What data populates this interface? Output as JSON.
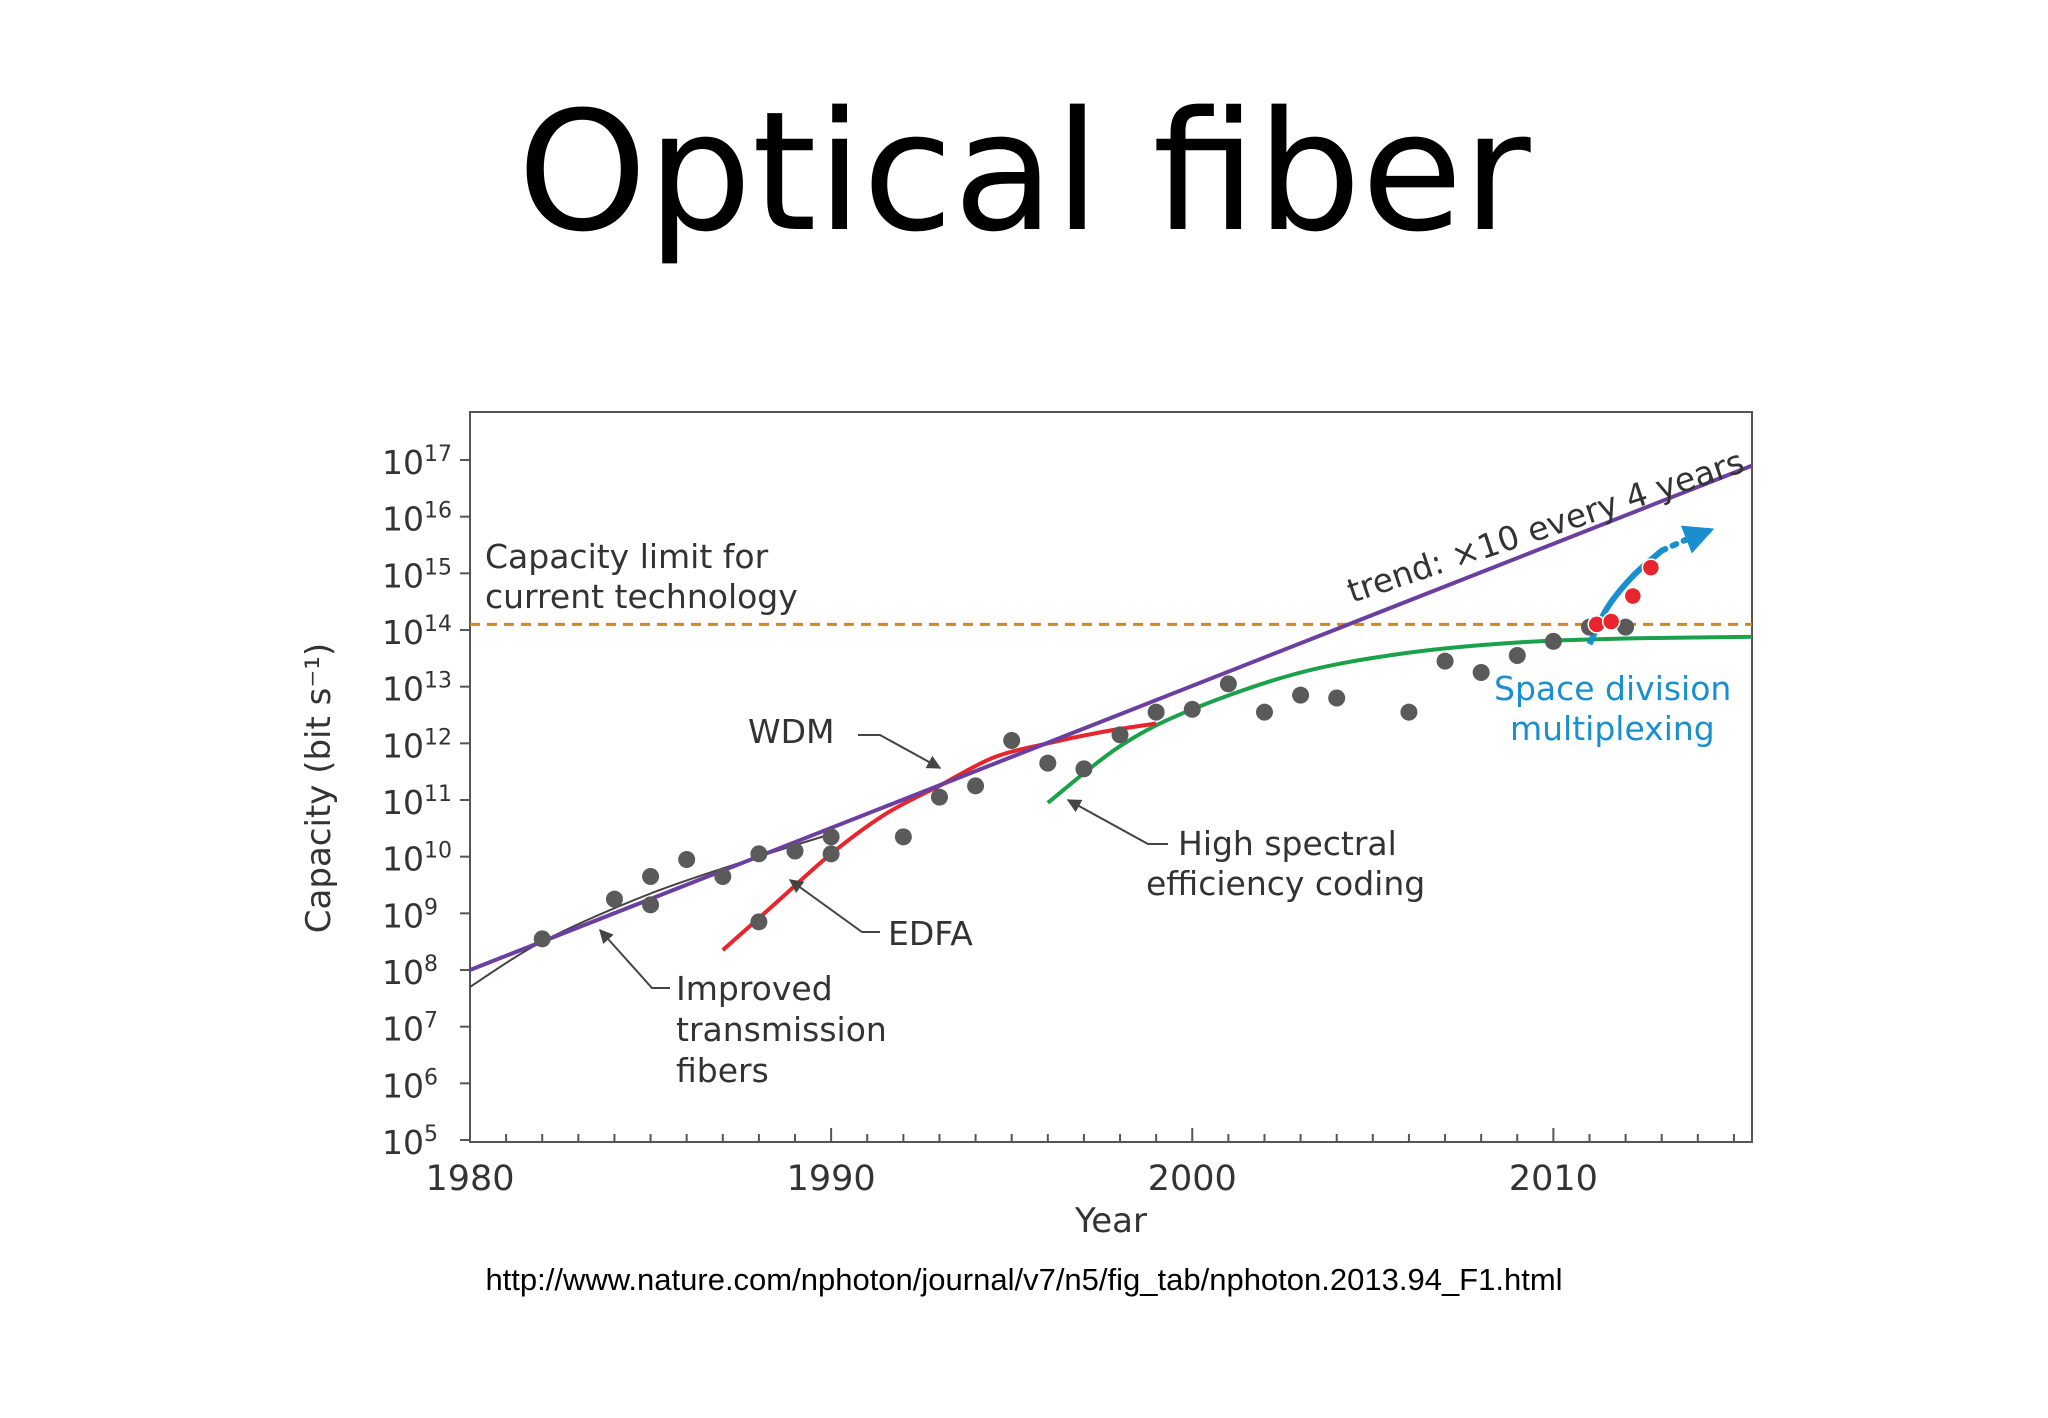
{
  "slide": {
    "title": "Optical fiber",
    "source_url": "http://www.nature.com/nphoton/journal/v7/n5/fig_tab/nphoton.2013.94_F1.html"
  },
  "chart_data": {
    "type": "scatter",
    "xlabel": "Year",
    "ylabel": "Capacity (bit s⁻¹)",
    "y_scale": "log10",
    "xlim": [
      1980,
      2015.5
    ],
    "ylim_exponent": [
      5,
      17.6
    ],
    "x_ticks": [
      1980,
      1990,
      2000,
      2010
    ],
    "x_tick_labels": [
      "1980",
      "1990",
      "2000",
      "2010"
    ],
    "y_ticks": [
      {
        "base": "10",
        "exp": "5",
        "value": 5
      },
      {
        "base": "10",
        "exp": "6",
        "value": 6
      },
      {
        "base": "10",
        "exp": "7",
        "value": 7
      },
      {
        "base": "10",
        "exp": "8",
        "value": 8
      },
      {
        "base": "10",
        "exp": "9",
        "value": 9
      },
      {
        "base": "10",
        "exp": "10",
        "value": 10
      },
      {
        "base": "10",
        "exp": "11",
        "value": 11
      },
      {
        "base": "10",
        "exp": "12",
        "value": 12
      },
      {
        "base": "10",
        "exp": "13",
        "value": 13
      },
      {
        "base": "10",
        "exp": "14",
        "value": 14
      },
      {
        "base": "10",
        "exp": "15",
        "value": 15
      },
      {
        "base": "10",
        "exp": "16",
        "value": 16
      },
      {
        "base": "10",
        "exp": "17",
        "value": 17
      }
    ],
    "colors": {
      "points_gray": "#5a5a5a",
      "points_red": "#e8242c",
      "trend": "#6a3fa0",
      "wdm": "#e8242c",
      "coding": "#1aa14a",
      "limit": "#c98a2a",
      "sdm": "#1a8fd0",
      "improved": "#444444"
    },
    "points_gray": [
      {
        "year": 1982,
        "log_capacity": 8.55
      },
      {
        "year": 1984,
        "log_capacity": 9.25
      },
      {
        "year": 1985,
        "log_capacity": 9.65
      },
      {
        "year": 1985,
        "log_capacity": 9.15
      },
      {
        "year": 1986,
        "log_capacity": 9.95
      },
      {
        "year": 1987,
        "log_capacity": 9.65
      },
      {
        "year": 1988,
        "log_capacity": 10.05
      },
      {
        "year": 1988,
        "log_capacity": 8.85
      },
      {
        "year": 1989,
        "log_capacity": 10.1
      },
      {
        "year": 1990,
        "log_capacity": 10.35
      },
      {
        "year": 1990,
        "log_capacity": 10.05
      },
      {
        "year": 1992,
        "log_capacity": 10.35
      },
      {
        "year": 1993,
        "log_capacity": 11.05
      },
      {
        "year": 1994,
        "log_capacity": 11.25
      },
      {
        "year": 1995,
        "log_capacity": 12.05
      },
      {
        "year": 1996,
        "log_capacity": 11.65
      },
      {
        "year": 1997,
        "log_capacity": 11.55
      },
      {
        "year": 1998,
        "log_capacity": 12.15
      },
      {
        "year": 1999,
        "log_capacity": 12.55
      },
      {
        "year": 2000,
        "log_capacity": 12.6
      },
      {
        "year": 2001,
        "log_capacity": 13.05
      },
      {
        "year": 2002,
        "log_capacity": 12.55
      },
      {
        "year": 2003,
        "log_capacity": 12.85
      },
      {
        "year": 2004,
        "log_capacity": 12.8
      },
      {
        "year": 2006,
        "log_capacity": 12.55
      },
      {
        "year": 2007,
        "log_capacity": 13.45
      },
      {
        "year": 2008,
        "log_capacity": 13.25
      },
      {
        "year": 2009,
        "log_capacity": 13.55
      },
      {
        "year": 2010,
        "log_capacity": 13.8
      },
      {
        "year": 2011,
        "log_capacity": 14.05
      },
      {
        "year": 2012,
        "log_capacity": 14.05
      }
    ],
    "points_red": [
      {
        "year": 2011.2,
        "log_capacity": 14.1
      },
      {
        "year": 2011.6,
        "log_capacity": 14.15
      },
      {
        "year": 2012.2,
        "log_capacity": 14.6
      },
      {
        "year": 2012.7,
        "log_capacity": 15.1
      }
    ],
    "lines": {
      "trend": {
        "x": [
          1980,
          2015.5
        ],
        "y": [
          8.0,
          16.9
        ]
      },
      "limit": {
        "x": [
          1980,
          2015.5
        ],
        "y": [
          14.1,
          14.1
        ]
      },
      "improved": {
        "x": [
          1980,
          1982,
          1985,
          1988,
          1990
        ],
        "y": [
          7.7,
          8.5,
          9.35,
          10.0,
          10.4
        ]
      },
      "edfa": {
        "x": [
          1987,
          1988.5,
          1990,
          1991.5,
          1993
        ],
        "y": [
          8.35,
          9.2,
          10.05,
          10.75,
          11.25
        ]
      },
      "wdm": {
        "x": [
          1993,
          1994.5,
          1996,
          1997.5,
          1999
        ],
        "y": [
          11.25,
          11.75,
          12.0,
          12.2,
          12.35
        ]
      },
      "coding": {
        "x": [
          1996,
          1998,
          2000,
          2003,
          2006,
          2009,
          2012,
          2015.5
        ],
        "y": [
          10.95,
          11.95,
          12.6,
          13.25,
          13.6,
          13.78,
          13.85,
          13.88
        ]
      },
      "sdm": {
        "x": [
          2011,
          2011.5,
          2012.2,
          2013
        ],
        "y": [
          13.75,
          14.4,
          14.95,
          15.4
        ]
      },
      "sdm_dotted": {
        "x": [
          2013,
          2013.7,
          2014.3
        ],
        "y": [
          15.4,
          15.6,
          15.75
        ]
      }
    },
    "annotations": {
      "limit_line1": "Capacity limit for",
      "limit_line2": "current technology",
      "trend": "trend: ×10 every 4 years",
      "wdm": "WDM",
      "edfa": "EDFA",
      "improved_line1": "Improved",
      "improved_line2": "transmission",
      "improved_line3": "fibers",
      "coding_line1": "High spectral",
      "coding_line2": "efficiency coding",
      "sdm_line1": "Space division",
      "sdm_line2": "multiplexing"
    }
  }
}
